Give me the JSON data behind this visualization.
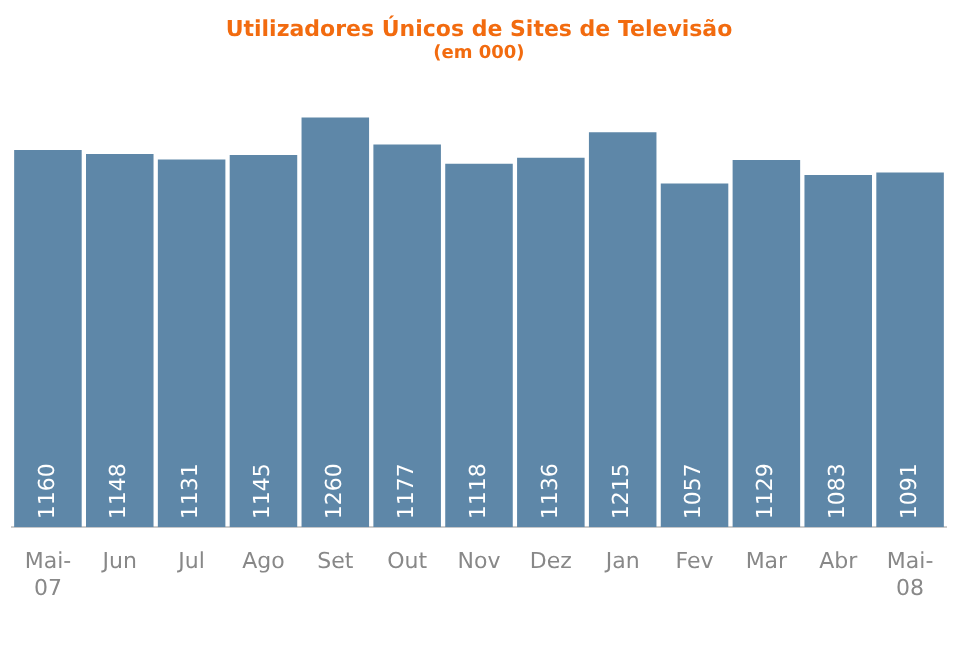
{
  "chart_data": {
    "type": "bar",
    "title": "Utilizadores Únicos de Sites de Televisão",
    "subtitle": "(em 000)",
    "categories": [
      "Mai-07",
      "Jun",
      "Jul",
      "Ago",
      "Set",
      "Out",
      "Nov",
      "Dez",
      "Jan",
      "Fev",
      "Mar",
      "Abr",
      "Mai-08"
    ],
    "values": [
      1160,
      1148,
      1131,
      1145,
      1260,
      1177,
      1118,
      1136,
      1215,
      1057,
      1129,
      1083,
      1091
    ],
    "color": "#5e87a8",
    "data_labels": true
  }
}
